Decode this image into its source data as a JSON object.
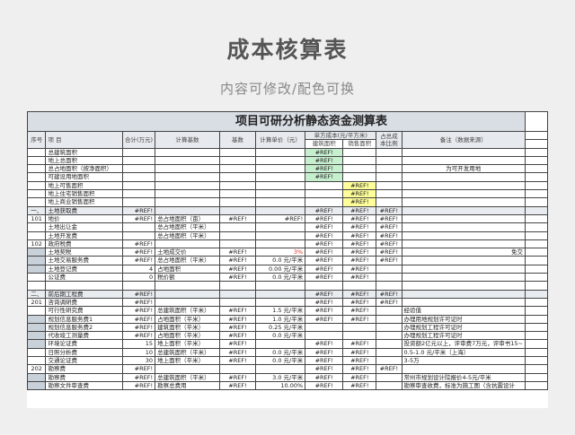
{
  "page": {
    "title": "成本核算表",
    "subtitle": "内容可修改/配色可换"
  },
  "sheet": {
    "title": "项目可研分析静态资金测算表",
    "headers": {
      "seq": "序号",
      "item": "项    目",
      "total": "合计(万元)",
      "basis": "计算基数",
      "base": "基数",
      "price": "计算单价（元）",
      "unit_cost": "单方成本(元/平方米)",
      "build_area": "建筑面积",
      "sale_area": "销售面积",
      "ratio": "占总成本比例",
      "note": "备注（数据来源）"
    },
    "colors": {
      "header": "#d9dee5",
      "green": "#c6efce",
      "yellow": "#ffff99",
      "shade": "#c8d0da",
      "ratio_header": "#c0502a"
    },
    "rows": [
      {
        "cells": [
          "",
          "总建筑面积",
          "",
          "",
          "",
          "",
          "#REF!",
          "",
          "",
          ""
        ],
        "green": 1
      },
      {
        "cells": [
          "",
          "地上总面积",
          "",
          "",
          "",
          "",
          "#REF!",
          "",
          "",
          ""
        ],
        "green": 1
      },
      {
        "cells": [
          "",
          "总占地面积（按净面积）",
          "",
          "",
          "",
          "",
          "#REF!",
          "",
          "",
          "为可开发用地"
        ],
        "green": 1
      },
      {
        "cells": [
          "",
          "可建设用地面积",
          "",
          "",
          "",
          "",
          "#REF!",
          "",
          "",
          ""
        ],
        "green": 1
      },
      {
        "cells": [
          "",
          "地上可售面积",
          "",
          "",
          "",
          "",
          "",
          "#REF!",
          "",
          ""
        ],
        "yellow": 1
      },
      {
        "cells": [
          "",
          "地上住宅销售面积",
          "",
          "",
          "",
          "",
          "",
          "#REF!",
          "",
          ""
        ],
        "yellow": 1
      },
      {
        "cells": [
          "",
          "地上商业销售面积",
          "",
          "",
          "",
          "",
          "",
          "#REF!",
          "",
          ""
        ],
        "yellow": 1
      },
      {
        "cells": [
          "一、",
          "土地获取费",
          "#REF!",
          "",
          "",
          "",
          "#REF!",
          "#REF!",
          "#REF!",
          ""
        ],
        "section": 1
      },
      {
        "cells": [
          "101",
          "地价",
          "#REF!",
          "总占地面积（亩）",
          "#REF!",
          "#REF!",
          "#REF!",
          "#REF!",
          "#REF!",
          ""
        ]
      },
      {
        "cells": [
          "",
          "土地出让金",
          "",
          "总占地面积（平米）",
          "",
          "",
          "#REF!",
          "#REF!",
          "#REF!",
          ""
        ]
      },
      {
        "cells": [
          "",
          "土地开发费",
          "",
          "总占地面积（平米）",
          "",
          "",
          "#REF!",
          "#REF!",
          "#REF!",
          ""
        ]
      },
      {
        "cells": [
          "102",
          "政府税费",
          "#REF!",
          "",
          "",
          "",
          "#REF!",
          "#REF!",
          "#REF!",
          ""
        ]
      },
      {
        "cells": [
          "",
          "土地契税",
          "#REF!",
          "土地成交价",
          "#REF!",
          "3%",
          "#REF!",
          "#REF!",
          "#REF!",
          "免交"
        ],
        "shade": 1,
        "redprice": 1
      },
      {
        "cells": [
          "",
          "土地交易服务费",
          "#REF!",
          "总占地面积（平米）",
          "#REF!",
          "0.0 元/平米",
          "#REF!",
          "#REF!",
          "#REF!",
          ""
        ],
        "shade": 1
      },
      {
        "cells": [
          "",
          "土地登记费",
          "4",
          "占地面积",
          "#REF!",
          "0.00 元/平米",
          "#REF!",
          "#REF!",
          "",
          ""
        ],
        "shade": 1
      },
      {
        "cells": [
          "",
          "公证费",
          "0",
          "税价额",
          "#REF!",
          "0.0 元/平米",
          "#REF!",
          "#REF!",
          "",
          ""
        ]
      },
      {
        "cells": [
          "",
          "",
          "",
          "",
          "",
          "",
          "",
          "",
          "",
          ""
        ]
      },
      {
        "cells": [
          "二、",
          "前后期工程费",
          "#REF!",
          "",
          "",
          "",
          "#REF!",
          "#REF!",
          "#REF!",
          ""
        ],
        "section": 1
      },
      {
        "cells": [
          "201",
          "咨询调研费",
          "#REF!",
          "",
          "",
          "",
          "#REF!",
          "#REF!",
          "#REF!",
          ""
        ]
      },
      {
        "cells": [
          "",
          "可行性研究费",
          "#REF!",
          "总建筑面积（平米）",
          "#REF!",
          "1.5 元/平米",
          "#REF!",
          "#REF!",
          "",
          "经验值"
        ]
      },
      {
        "cells": [
          "",
          "规划信息服务费1",
          "#REF!",
          "占地面积（平米）",
          "#REF!",
          "1.0 元/平米",
          "#REF!",
          "#REF!",
          "",
          "办理用地规划许可证时"
        ],
        "shade": 1
      },
      {
        "cells": [
          "",
          "规划信息服务费2",
          "#REF!",
          "建筑面积（平米）",
          "#REF!",
          "0.25 元/平米",
          "",
          "",
          "",
          "办理规划工程许可证时"
        ],
        "shade": 1
      },
      {
        "cells": [
          "",
          "代收竣工测量费",
          "#REF!",
          "占地面积（平米）",
          "#REF!",
          "0.0 元/平米",
          "",
          "",
          "",
          "办理规划工程许可证时"
        ],
        "shade": 1
      },
      {
        "cells": [
          "",
          "环境论证费",
          "15",
          "地上面积（平米）",
          "#REF!",
          "",
          "#REF!",
          "#REF!",
          "",
          "投资额2亿元以上，评审费7万元，评审书15~"
        ],
        "shade": 1
      },
      {
        "cells": [
          "",
          "日照分析费",
          "10",
          "总建筑面积（平米）",
          "#REF!",
          "0.0 元/平米",
          "#REF!",
          "#REF!",
          "",
          "0.5-1.0 元/平米（上海）"
        ]
      },
      {
        "cells": [
          "",
          "交通论证费",
          "30",
          "地上面积（平米）",
          "#REF!",
          "0.0 元/平米",
          "#REF!",
          "#REF!",
          "",
          "3-5万"
        ]
      },
      {
        "cells": [
          "202",
          "勘察费",
          "#REF!",
          "",
          "",
          "",
          "#REF!",
          "#REF!",
          "#REF!",
          ""
        ]
      },
      {
        "cells": [
          "",
          "勘察费",
          "#REF!",
          "总建筑面积（平米）",
          "#REF!",
          "3.0 元/平米",
          "#REF!",
          "#REF!",
          "",
          "常州市规划设计院报价4-5元/平米"
        ],
        "shade": 1
      },
      {
        "cells": [
          "",
          "勘察文件审查费",
          "#REF!",
          "勘察总费用",
          "#REF!",
          "10.00%",
          "#REF!",
          "#REF!",
          "",
          "勘察审查收费，标准为施工图（含抗震设计"
        ],
        "shade": 1
      }
    ]
  }
}
